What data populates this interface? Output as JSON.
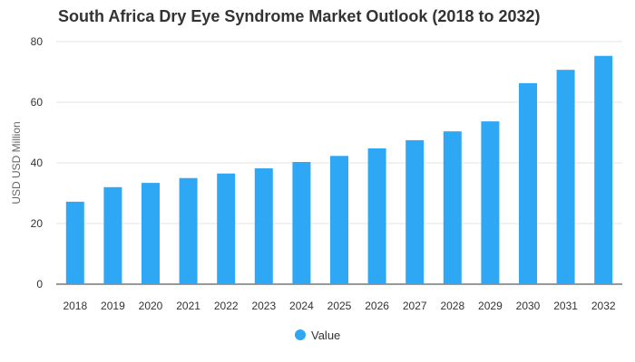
{
  "chart_data": {
    "type": "bar",
    "title": "South Africa Dry Eye Syndrome Market Outlook (2018 to 2032)",
    "xlabel": "",
    "ylabel": "USD USD Million",
    "ylim": [
      0,
      80
    ],
    "yticks": [
      0,
      20,
      40,
      60,
      80
    ],
    "grid": true,
    "legend_position": "bottom",
    "categories": [
      "2018",
      "2019",
      "2020",
      "2021",
      "2022",
      "2023",
      "2024",
      "2025",
      "2026",
      "2027",
      "2028",
      "2029",
      "2030",
      "2031",
      "2032"
    ],
    "series": [
      {
        "name": "Value",
        "color": "#2ea8f5",
        "values": [
          27.2,
          32.0,
          33.4,
          35.0,
          36.5,
          38.2,
          40.3,
          42.3,
          44.8,
          47.5,
          50.4,
          53.7,
          66.3,
          70.7,
          75.3
        ]
      }
    ]
  }
}
